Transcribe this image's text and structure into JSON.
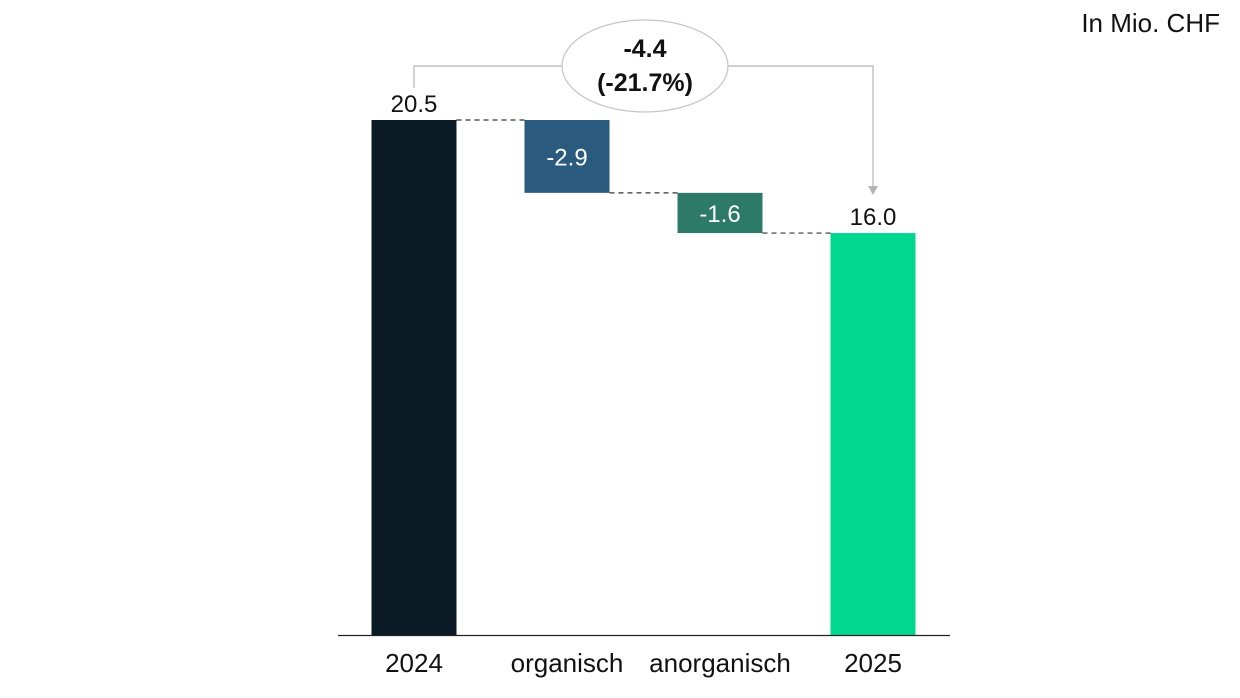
{
  "unit_label": "In Mio. CHF",
  "chart_data": {
    "type": "bar",
    "subtype": "waterfall",
    "title": "",
    "xlabel": "",
    "ylabel": "",
    "unit": "In Mio. CHF",
    "ylim": [
      0,
      20.5
    ],
    "grid": false,
    "categories": [
      "2024",
      "organisch",
      "anorganisch",
      "2025"
    ],
    "values": [
      20.5,
      -2.9,
      -1.6,
      16.0
    ],
    "bar_kinds": [
      "total",
      "delta",
      "delta",
      "total"
    ],
    "value_labels": [
      "20.5",
      "-2.9",
      "-1.6",
      "16.0"
    ],
    "colors": [
      "#0a1b26",
      "#2a5a7e",
      "#2e7a68",
      "#00d890"
    ],
    "change_annotation": {
      "line1": "-4.4",
      "line2": "(-21.7%)",
      "from": "2024",
      "to": "2025"
    }
  }
}
